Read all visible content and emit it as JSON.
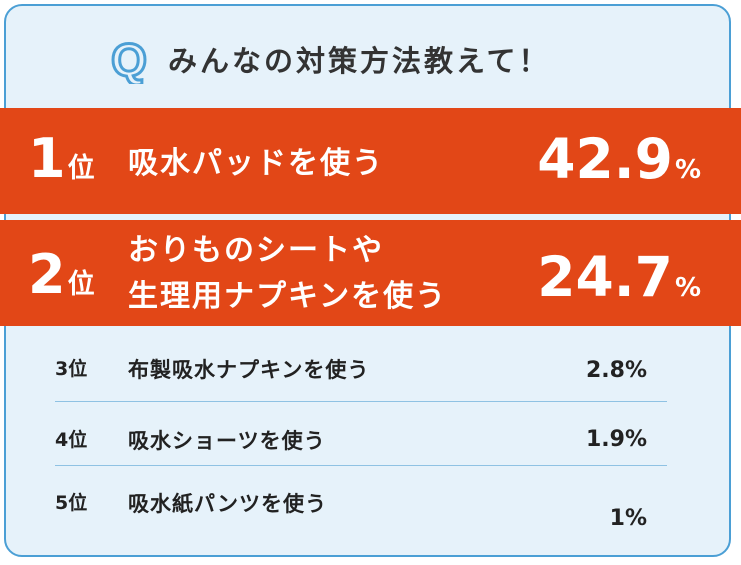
{
  "header": {
    "q_letter": "Q",
    "question": "みんなの対策方法教えて！"
  },
  "top": [
    {
      "rank": "1",
      "rank_suffix": "位",
      "label_lines": [
        "吸水パッドを使う"
      ],
      "percent": "42.9",
      "percent_sign": "%"
    },
    {
      "rank": "2",
      "rank_suffix": "位",
      "label_lines": [
        "おりものシートや",
        "生理用ナプキンを使う"
      ],
      "percent": "24.7",
      "percent_sign": "%"
    }
  ],
  "rest": [
    {
      "rank": "3位",
      "label": "布製吸水ナプキンを使う",
      "percent": "2.8%"
    },
    {
      "rank": "4位",
      "label": "吸水ショーツを使う",
      "percent": "1.9%"
    },
    {
      "rank": "5位",
      "label": "吸水紙パンツを使う",
      "percent": "1%"
    }
  ],
  "colors": {
    "band": "#e24717",
    "card_background": "#e6f2fa",
    "card_border": "#4b9fd5",
    "q_icon": "#4b9fd5"
  }
}
